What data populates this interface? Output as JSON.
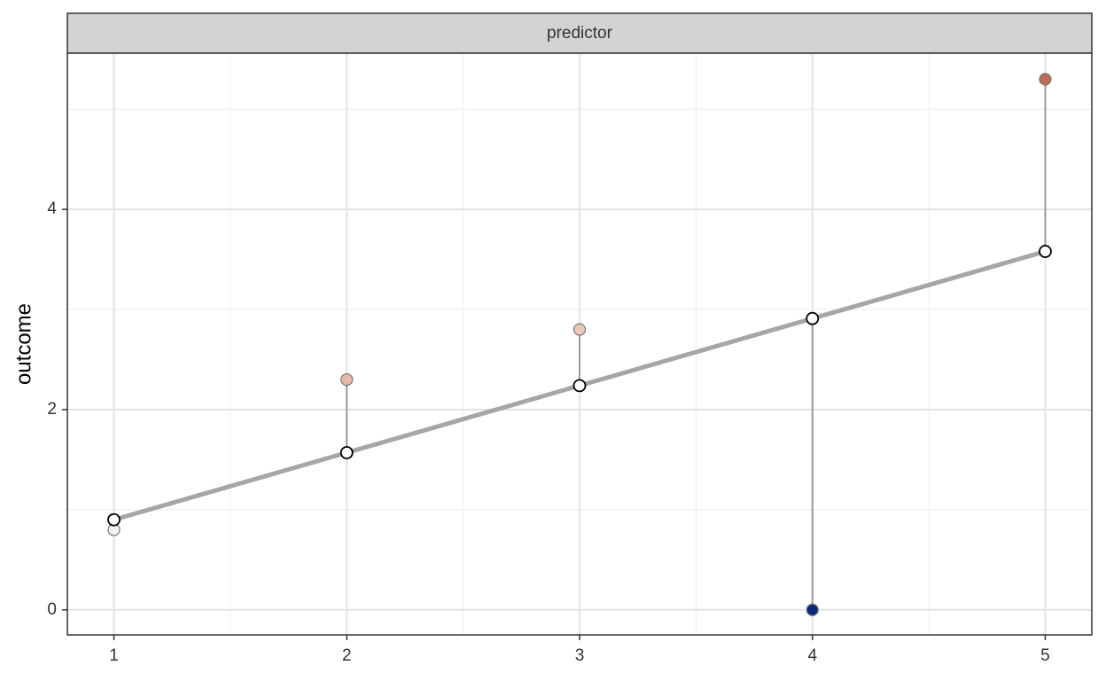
{
  "chart_data": {
    "type": "scatter",
    "facet_label": "predictor",
    "y_label": "outcome",
    "x": [
      1,
      2,
      3,
      4,
      5
    ],
    "series": [
      {
        "role": "observed",
        "values": [
          0.8,
          2.3,
          2.8,
          0,
          5.3
        ],
        "colors": [
          "#f1f0f2",
          "#e9b9a6",
          "#edc9ba",
          "#0a2a80",
          "#c06b57"
        ],
        "stroke": "#777777"
      },
      {
        "role": "fitted",
        "values": [
          0.9,
          1.57,
          2.24,
          2.91,
          3.58
        ],
        "color": "#ffffff",
        "stroke": "#000000"
      }
    ],
    "fit_line_color": "#a6a6a6",
    "residual_color": "#9a9a9a",
    "xlim": [
      0.8,
      5.2
    ],
    "ylim": [
      -0.25,
      5.56
    ],
    "xticks": [
      1,
      2,
      3,
      4,
      5
    ],
    "yticks": [
      0,
      2,
      4
    ],
    "x_minor_ticks": [
      1.5,
      2.5,
      3.5,
      4.5
    ],
    "y_minor_ticks": [
      1,
      3,
      5
    ],
    "grid": true
  }
}
